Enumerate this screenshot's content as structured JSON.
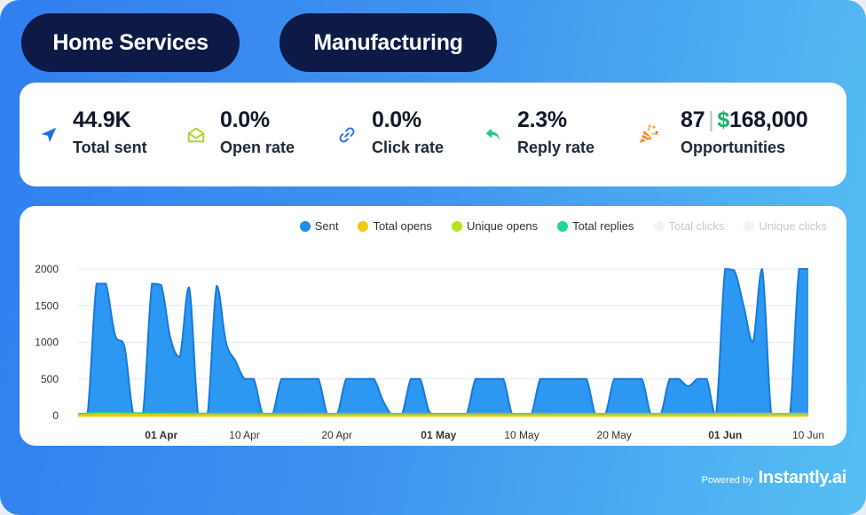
{
  "tabs": [
    {
      "label": "Home Services"
    },
    {
      "label": "Manufacturing"
    }
  ],
  "stats": {
    "total_sent": {
      "value": "44.9K",
      "label": "Total sent",
      "icon": "send-icon"
    },
    "open_rate": {
      "value": "0.0%",
      "label": "Open rate",
      "icon": "envelope-open-icon"
    },
    "click_rate": {
      "value": "0.0%",
      "label": "Click rate",
      "icon": "link-icon"
    },
    "reply_rate": {
      "value": "2.3%",
      "label": "Reply rate",
      "icon": "reply-icon"
    },
    "opportunities": {
      "count": "87",
      "separator": "|",
      "currency": "$",
      "amount": "168,000",
      "label": "Opportunities",
      "icon": "party-popper-icon"
    }
  },
  "colors": {
    "sent": "#1a8ff0",
    "total_opens": "#f5c518",
    "unique_opens": "#b6e51f",
    "total_replies": "#22d39a",
    "total_clicks": "#eef6f3",
    "unique_clicks": "#eef6f3",
    "tab_bg": "#0c1a45",
    "accent_green": "#18b06a"
  },
  "legend": [
    {
      "name": "Sent",
      "color": "#1a8ff0",
      "faded": false
    },
    {
      "name": "Total opens",
      "color": "#f5c518",
      "faded": false
    },
    {
      "name": "Unique opens",
      "color": "#b6e51f",
      "faded": false
    },
    {
      "name": "Total replies",
      "color": "#22d39a",
      "faded": false
    },
    {
      "name": "Total clicks",
      "color": "#eef6f3",
      "faded": true
    },
    {
      "name": "Unique clicks",
      "color": "#eef6f3",
      "faded": true
    }
  ],
  "chart_data": {
    "type": "area",
    "x_start": "2024-03-23",
    "x_end": "2024-06-10",
    "ylim": [
      0,
      2000
    ],
    "yticks": [
      0,
      500,
      1000,
      1500,
      2000
    ],
    "xticks": [
      {
        "label": "01 Apr",
        "date": "2024-04-01",
        "bold": true
      },
      {
        "label": "10 Apr",
        "date": "2024-04-10",
        "bold": false
      },
      {
        "label": "20 Apr",
        "date": "2024-04-20",
        "bold": false
      },
      {
        "label": "01 May",
        "date": "2024-05-01",
        "bold": true
      },
      {
        "label": "10 May",
        "date": "2024-05-10",
        "bold": false
      },
      {
        "label": "20 May",
        "date": "2024-05-20",
        "bold": false
      },
      {
        "label": "01 Jun",
        "date": "2024-06-01",
        "bold": true
      },
      {
        "label": "10 Jun",
        "date": "2024-06-10",
        "bold": false
      }
    ],
    "grid": true,
    "legend_position": "top-right",
    "series": [
      {
        "name": "Sent",
        "points": [
          [
            "2024-03-23",
            0
          ],
          [
            "2024-03-24",
            0
          ],
          [
            "2024-03-25",
            1800
          ],
          [
            "2024-03-26",
            1800
          ],
          [
            "2024-03-27",
            1100
          ],
          [
            "2024-03-28",
            950
          ],
          [
            "2024-03-29",
            0
          ],
          [
            "2024-03-30",
            0
          ],
          [
            "2024-03-31",
            1800
          ],
          [
            "2024-04-01",
            1780
          ],
          [
            "2024-04-02",
            1050
          ],
          [
            "2024-04-03",
            800
          ],
          [
            "2024-04-04",
            1750
          ],
          [
            "2024-04-05",
            0
          ],
          [
            "2024-04-06",
            0
          ],
          [
            "2024-04-07",
            1770
          ],
          [
            "2024-04-08",
            1000
          ],
          [
            "2024-04-09",
            750
          ],
          [
            "2024-04-10",
            500
          ],
          [
            "2024-04-11",
            500
          ],
          [
            "2024-04-12",
            0
          ],
          [
            "2024-04-13",
            0
          ],
          [
            "2024-04-14",
            500
          ],
          [
            "2024-04-15",
            500
          ],
          [
            "2024-04-16",
            500
          ],
          [
            "2024-04-17",
            500
          ],
          [
            "2024-04-18",
            500
          ],
          [
            "2024-04-19",
            0
          ],
          [
            "2024-04-20",
            0
          ],
          [
            "2024-04-21",
            500
          ],
          [
            "2024-04-22",
            500
          ],
          [
            "2024-04-23",
            500
          ],
          [
            "2024-04-24",
            500
          ],
          [
            "2024-04-25",
            200
          ],
          [
            "2024-04-26",
            0
          ],
          [
            "2024-04-27",
            0
          ],
          [
            "2024-04-28",
            500
          ],
          [
            "2024-04-29",
            500
          ],
          [
            "2024-04-30",
            50
          ],
          [
            "2024-05-01",
            0
          ],
          [
            "2024-05-02",
            0
          ],
          [
            "2024-05-03",
            0
          ],
          [
            "2024-05-04",
            0
          ],
          [
            "2024-05-05",
            500
          ],
          [
            "2024-05-06",
            500
          ],
          [
            "2024-05-07",
            500
          ],
          [
            "2024-05-08",
            500
          ],
          [
            "2024-05-09",
            0
          ],
          [
            "2024-05-10",
            0
          ],
          [
            "2024-05-11",
            0
          ],
          [
            "2024-05-12",
            500
          ],
          [
            "2024-05-13",
            500
          ],
          [
            "2024-05-14",
            500
          ],
          [
            "2024-05-15",
            500
          ],
          [
            "2024-05-16",
            500
          ],
          [
            "2024-05-17",
            500
          ],
          [
            "2024-05-18",
            0
          ],
          [
            "2024-05-19",
            0
          ],
          [
            "2024-05-20",
            500
          ],
          [
            "2024-05-21",
            500
          ],
          [
            "2024-05-22",
            500
          ],
          [
            "2024-05-23",
            500
          ],
          [
            "2024-05-24",
            0
          ],
          [
            "2024-05-25",
            0
          ],
          [
            "2024-05-26",
            500
          ],
          [
            "2024-05-27",
            500
          ],
          [
            "2024-05-28",
            400
          ],
          [
            "2024-05-29",
            500
          ],
          [
            "2024-05-30",
            500
          ],
          [
            "2024-05-31",
            0
          ],
          [
            "2024-06-01",
            2000
          ],
          [
            "2024-06-02",
            1980
          ],
          [
            "2024-06-03",
            1500
          ],
          [
            "2024-06-04",
            1000
          ],
          [
            "2024-06-05",
            2000
          ],
          [
            "2024-06-06",
            0
          ],
          [
            "2024-06-07",
            0
          ],
          [
            "2024-06-08",
            0
          ],
          [
            "2024-06-09",
            2000
          ],
          [
            "2024-06-10",
            2000
          ]
        ]
      },
      {
        "name": "Total opens",
        "points": [
          [
            "2024-03-23",
            20
          ],
          [
            "2024-06-10",
            20
          ]
        ]
      },
      {
        "name": "Unique opens",
        "points": [
          [
            "2024-03-23",
            15
          ],
          [
            "2024-06-10",
            15
          ]
        ]
      },
      {
        "name": "Total replies",
        "points": [
          [
            "2024-03-23",
            25
          ],
          [
            "2024-03-25",
            40
          ],
          [
            "2024-04-04",
            30
          ],
          [
            "2024-06-10",
            20
          ]
        ]
      }
    ]
  },
  "footer": {
    "powered_by": "Powered by",
    "brand": "Instantly.ai"
  }
}
